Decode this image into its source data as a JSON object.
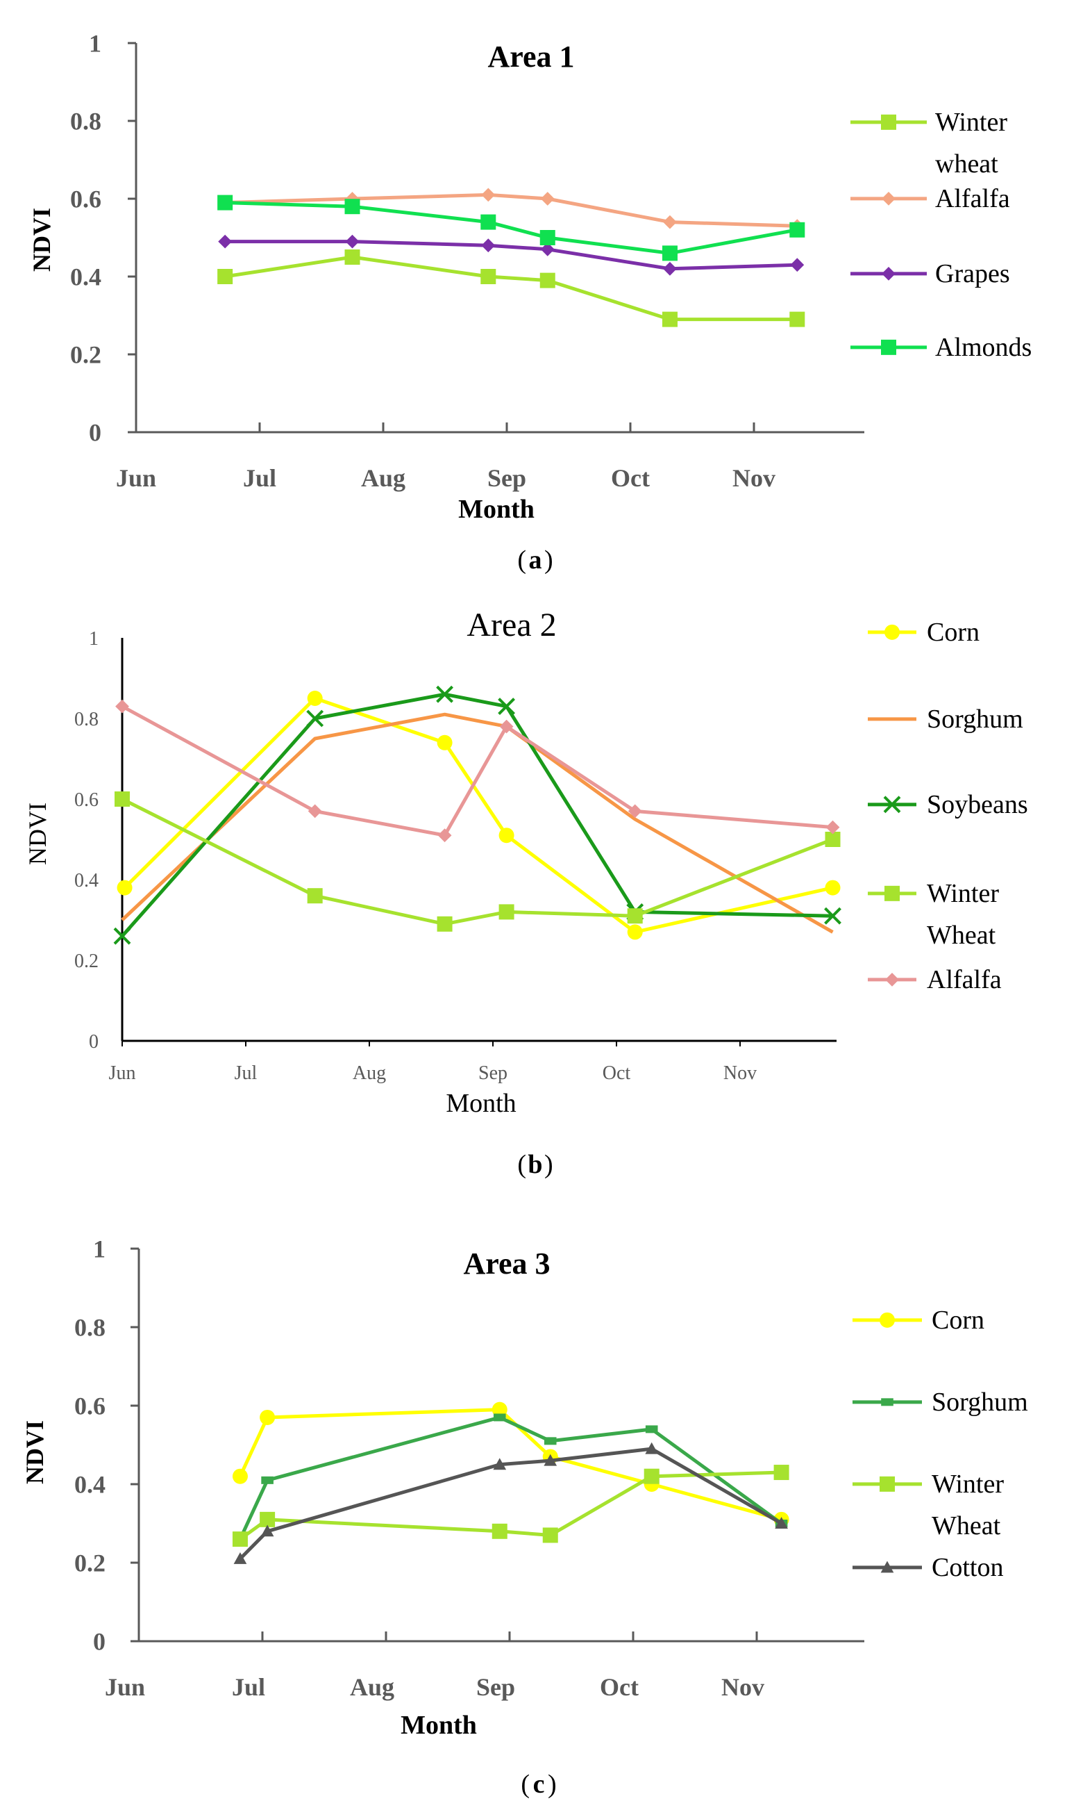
{
  "chart_data": [
    {
      "type": "line",
      "title": "Area 1",
      "xlabel": "Month",
      "ylabel": "NDVI",
      "caption_letter": "a",
      "ylim": [
        0,
        1
      ],
      "yticks": [
        "0",
        "0.2",
        "0.4",
        "0.6",
        "0.8",
        "1"
      ],
      "categories": [
        "Jun",
        "Jul",
        "Aug",
        "Sep",
        "Oct",
        "Nov"
      ],
      "series": [
        {
          "name": "Winter wheat",
          "color": "#a6e22e",
          "marker": "square",
          "x": [
            0.72,
            1.75,
            2.85,
            3.33,
            4.32,
            5.35
          ],
          "values": [
            0.4,
            0.45,
            0.4,
            0.39,
            0.29,
            0.29
          ]
        },
        {
          "name": "Alfalfa",
          "color": "#f4a582",
          "marker": "diamond",
          "x": [
            0.72,
            1.75,
            2.85,
            3.33,
            4.32,
            5.35
          ],
          "values": [
            0.59,
            0.6,
            0.61,
            0.6,
            0.54,
            0.53
          ]
        },
        {
          "name": "Grapes",
          "color": "#7b2fa8",
          "marker": "diamond",
          "x": [
            0.72,
            1.75,
            2.85,
            3.33,
            4.32,
            5.35
          ],
          "values": [
            0.49,
            0.49,
            0.48,
            0.47,
            0.42,
            0.43
          ]
        },
        {
          "name": "Almonds",
          "color": "#10e050",
          "marker": "square",
          "x": [
            0.72,
            1.75,
            2.85,
            3.33,
            4.32,
            5.35
          ],
          "values": [
            0.59,
            0.58,
            0.54,
            0.5,
            0.46,
            0.52
          ]
        }
      ]
    },
    {
      "type": "line",
      "title": "Area 2",
      "xlabel": "Month",
      "ylabel": "NDVI",
      "caption_letter": "b",
      "ylim": [
        0,
        1
      ],
      "yticks": [
        "0",
        "0.2",
        "0.4",
        "0.6",
        "0.8",
        "1"
      ],
      "categories": [
        "Jun",
        "Jul",
        "Aug",
        "Sep",
        "Oct",
        "Nov"
      ],
      "series": [
        {
          "name": "Corn",
          "color": "#ffff00",
          "marker": "circle",
          "x": [
            0.02,
            1.56,
            2.61,
            3.11,
            4.15,
            5.75
          ],
          "values": [
            0.38,
            0.85,
            0.74,
            0.51,
            0.27,
            0.38
          ]
        },
        {
          "name": "Sorghum",
          "color": "#f79646",
          "marker": "none",
          "x": [
            0.0,
            1.56,
            2.61,
            3.11,
            4.15,
            5.75
          ],
          "values": [
            0.3,
            0.75,
            0.81,
            0.78,
            0.55,
            0.27
          ]
        },
        {
          "name": "Soybeans",
          "color": "#1a9a1a",
          "marker": "x",
          "x": [
            0.0,
            1.56,
            2.61,
            3.11,
            4.15,
            5.75
          ],
          "values": [
            0.26,
            0.8,
            0.86,
            0.83,
            0.32,
            0.31
          ]
        },
        {
          "name": "Winter Wheat",
          "color": "#a6e22e",
          "marker": "square",
          "x": [
            0.0,
            1.56,
            2.61,
            3.11,
            4.15,
            5.75
          ],
          "values": [
            0.6,
            0.36,
            0.29,
            0.32,
            0.31,
            0.5
          ]
        },
        {
          "name": "Alfalfa",
          "color": "#e89696",
          "marker": "diamond",
          "x": [
            0.0,
            1.56,
            2.61,
            3.11,
            4.15,
            5.75
          ],
          "values": [
            0.83,
            0.57,
            0.51,
            0.78,
            0.57,
            0.53
          ]
        }
      ]
    },
    {
      "type": "line",
      "title": "Area 3",
      "xlabel": "Month",
      "ylabel": "NDVI",
      "caption_letter": "c",
      "ylim": [
        0,
        1
      ],
      "yticks": [
        "0",
        "0.2",
        "0.4",
        "0.6",
        "0.8",
        "1"
      ],
      "categories": [
        "Jun",
        "Jul",
        "Aug",
        "Sep",
        "Oct",
        "Nov"
      ],
      "series": [
        {
          "name": "Corn",
          "color": "#ffff00",
          "marker": "circle",
          "x": [
            0.82,
            1.04,
            2.92,
            3.33,
            4.15,
            5.2
          ],
          "values": [
            0.42,
            0.57,
            0.59,
            0.47,
            0.4,
            0.31
          ]
        },
        {
          "name": "Sorghum",
          "color": "#3aa84a",
          "marker": "dash",
          "x": [
            0.82,
            1.04,
            2.92,
            3.33,
            4.15,
            5.2
          ],
          "values": [
            0.26,
            0.41,
            0.57,
            0.51,
            0.54,
            0.3
          ]
        },
        {
          "name": "Winter Wheat",
          "color": "#a6e22e",
          "marker": "square",
          "x": [
            0.82,
            1.04,
            2.92,
            3.33,
            4.15,
            5.2
          ],
          "values": [
            0.26,
            0.31,
            0.28,
            0.27,
            0.42,
            0.43
          ]
        },
        {
          "name": "Cotton",
          "color": "#555555",
          "marker": "triangle",
          "x": [
            0.82,
            1.04,
            2.92,
            3.33,
            4.15,
            5.2
          ],
          "values": [
            0.21,
            0.28,
            0.45,
            0.46,
            0.49,
            0.3
          ]
        }
      ]
    }
  ]
}
